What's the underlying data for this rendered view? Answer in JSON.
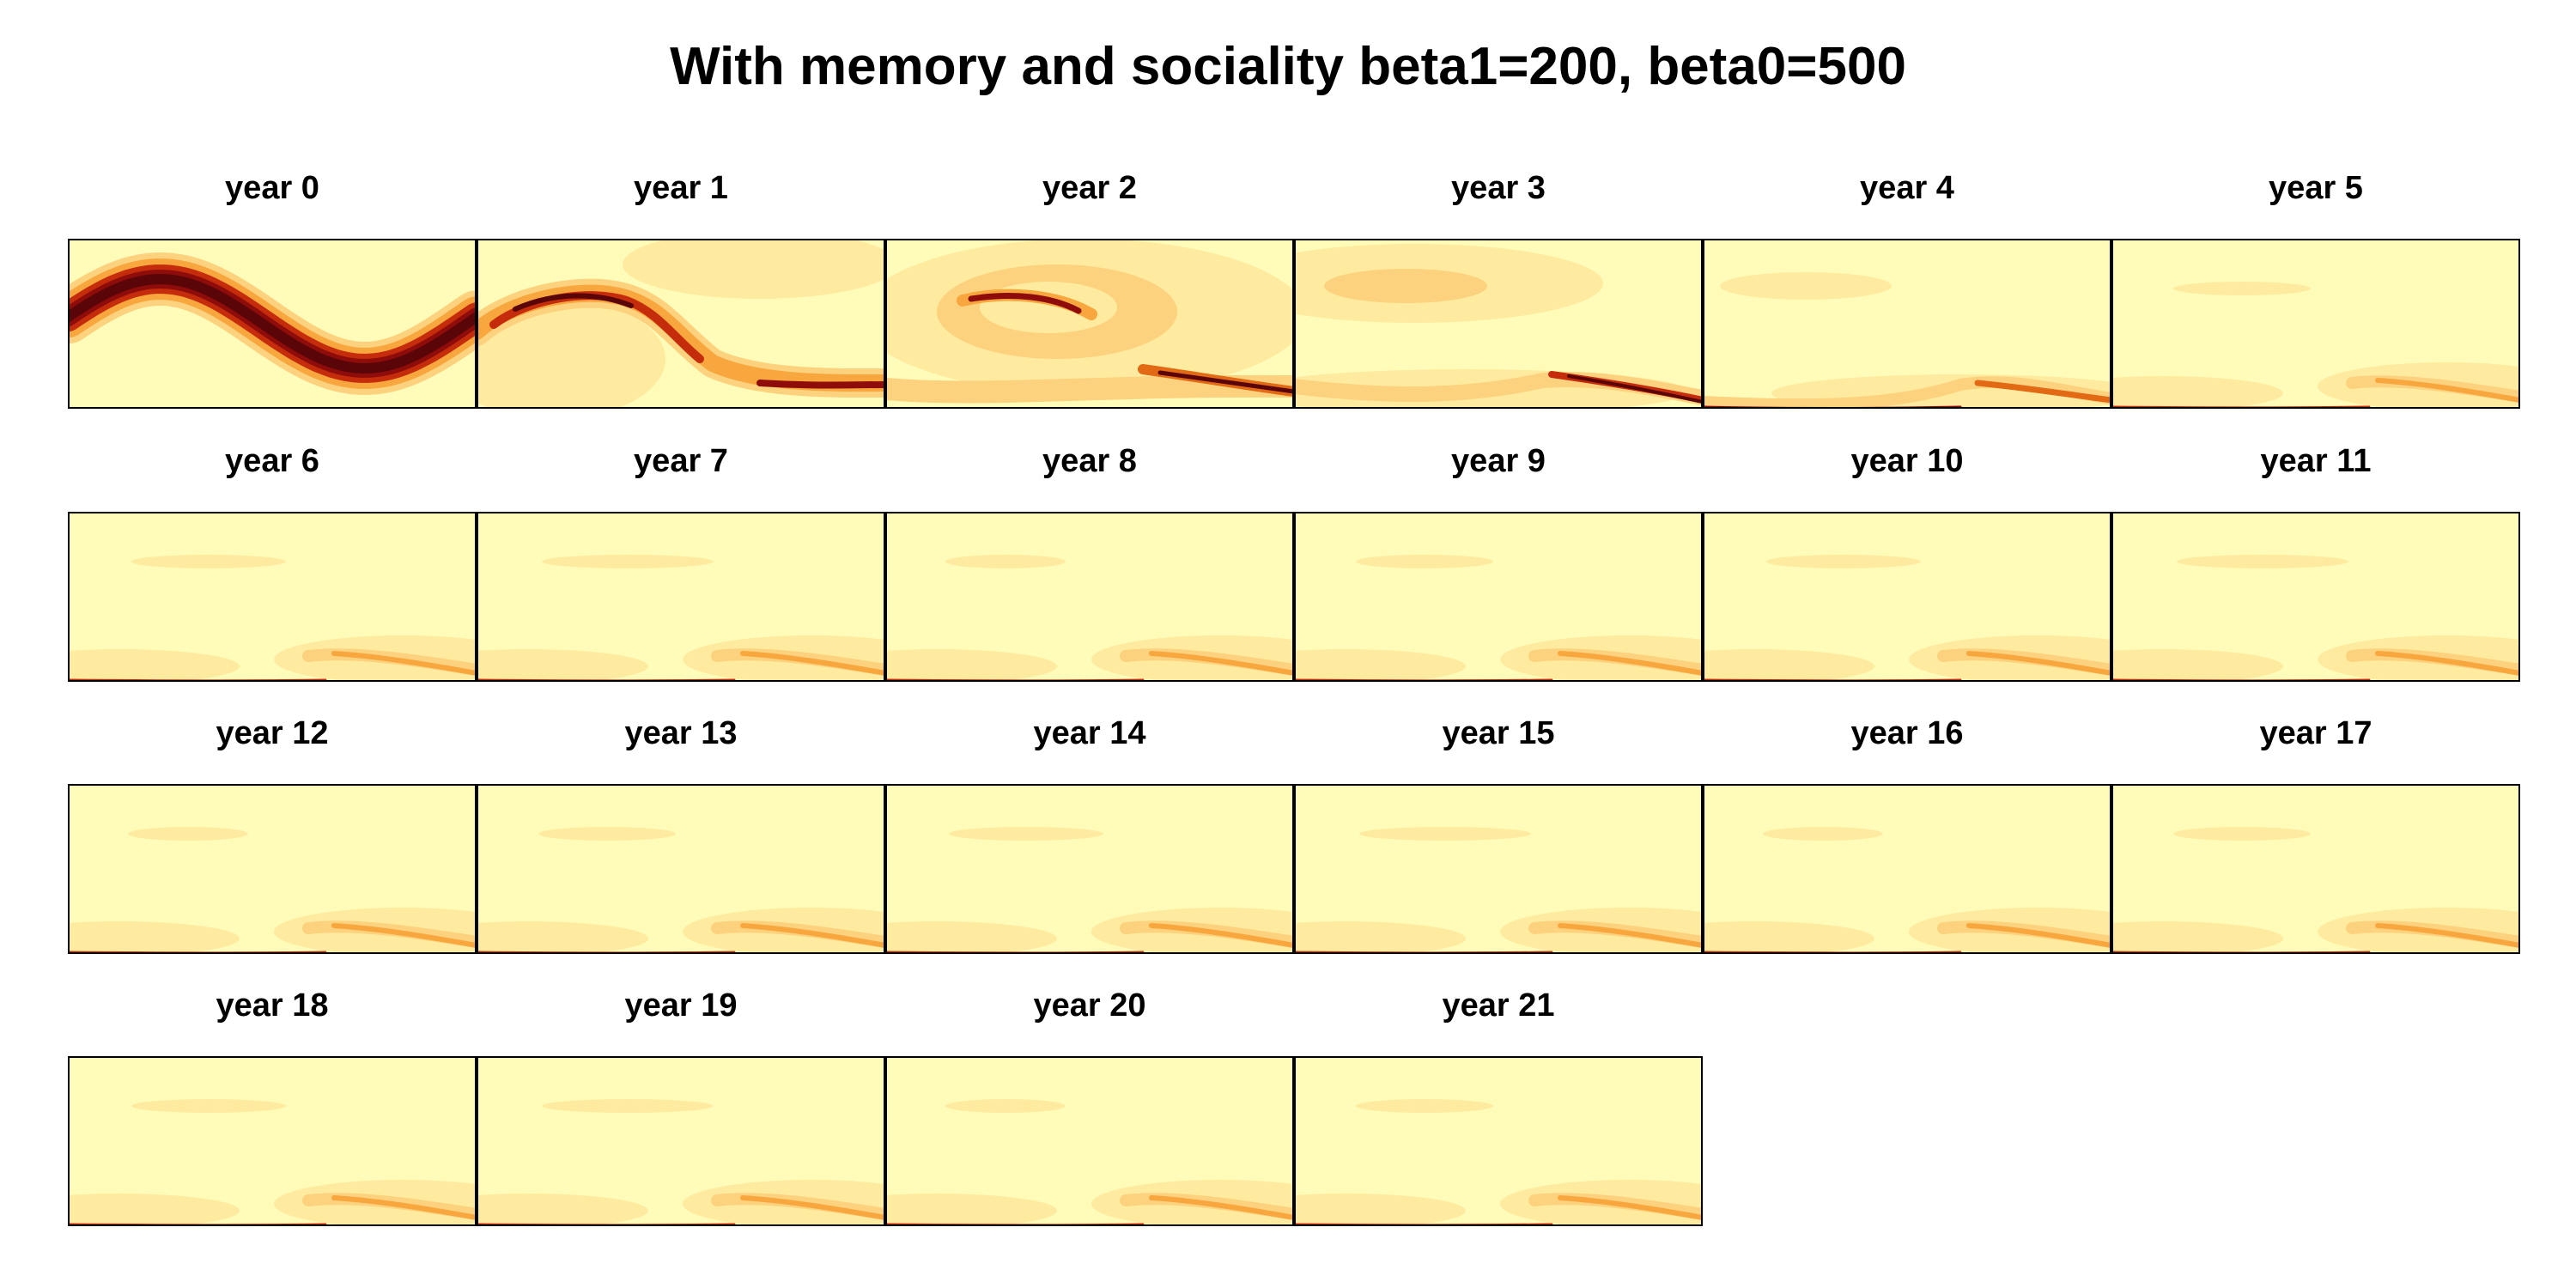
{
  "title": "With memory and sociality beta1=200, beta0=500",
  "colors": {
    "background": "#FFFCBA",
    "level1": "#FEEBA0",
    "level2": "#FCD27E",
    "level3": "#F8A63E",
    "level4": "#E36A15",
    "level5": "#C42C0C",
    "level6": "#8E0C0A",
    "level7": "#5A0507",
    "frame": "#000000"
  },
  "chart_data": {
    "type": "heatmap",
    "layout": {
      "rows": 4,
      "cols": 6
    },
    "panels": [
      {
        "label": "year 0",
        "peak": 1.0
      },
      {
        "label": "year 1",
        "peak": 0.85
      },
      {
        "label": "year 2",
        "peak": 0.75
      },
      {
        "label": "year 3",
        "peak": 0.7
      },
      {
        "label": "year 4",
        "peak": 0.6
      },
      {
        "label": "year 5",
        "peak": 0.45
      },
      {
        "label": "year 6",
        "peak": 0.4
      },
      {
        "label": "year 7",
        "peak": 0.42
      },
      {
        "label": "year 8",
        "peak": 0.42
      },
      {
        "label": "year 9",
        "peak": 0.42
      },
      {
        "label": "year 10",
        "peak": 0.42
      },
      {
        "label": "year 11",
        "peak": 0.42
      },
      {
        "label": "year 12",
        "peak": 0.42
      },
      {
        "label": "year 13",
        "peak": 0.42
      },
      {
        "label": "year 14",
        "peak": 0.42
      },
      {
        "label": "year 15",
        "peak": 0.42
      },
      {
        "label": "year 16",
        "peak": 0.42
      },
      {
        "label": "year 17",
        "peak": 0.42
      },
      {
        "label": "year 18",
        "peak": 0.4
      },
      {
        "label": "year 19",
        "peak": 0.4
      },
      {
        "label": "year 20",
        "peak": 0.4
      },
      {
        "label": "year 21",
        "peak": 0.4
      }
    ]
  }
}
